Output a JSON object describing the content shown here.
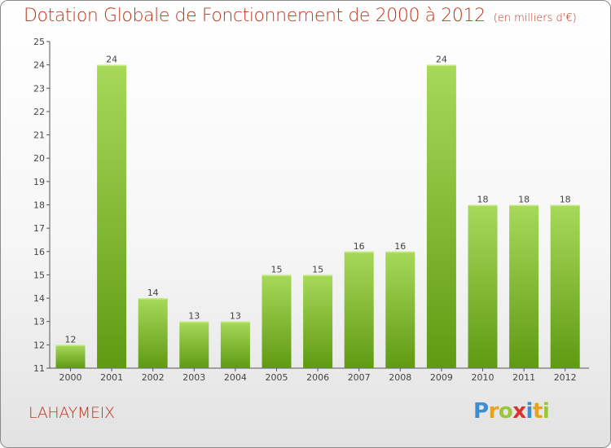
{
  "title": "Dotation Globale de Fonctionnement de 2000 à 2012",
  "subtitle": "(en milliers d'€)",
  "commune": "LAHAYMEIX",
  "logo": {
    "letters": [
      "P",
      "r",
      "o",
      "x",
      "i",
      "t",
      "i"
    ]
  },
  "colors": {
    "title": "#c0341a",
    "bar_light": "#a8d95a",
    "bar_dark": "#5f9a12",
    "axis": "#555555"
  },
  "chart_data": {
    "type": "bar",
    "title": "Dotation Globale de Fonctionnement de 2000 à 2012",
    "xlabel": "",
    "ylabel": "",
    "categories": [
      "2000",
      "2001",
      "2002",
      "2003",
      "2004",
      "2005",
      "2006",
      "2007",
      "2008",
      "2009",
      "2010",
      "2011",
      "2012"
    ],
    "values": [
      12,
      24,
      14,
      13,
      13,
      15,
      15,
      16,
      16,
      24,
      18,
      18,
      18
    ],
    "ylim": [
      11,
      25
    ],
    "yticks": [
      11,
      12,
      13,
      14,
      15,
      16,
      17,
      18,
      19,
      20,
      21,
      22,
      23,
      24,
      25
    ],
    "grid": false,
    "legend": "none"
  }
}
